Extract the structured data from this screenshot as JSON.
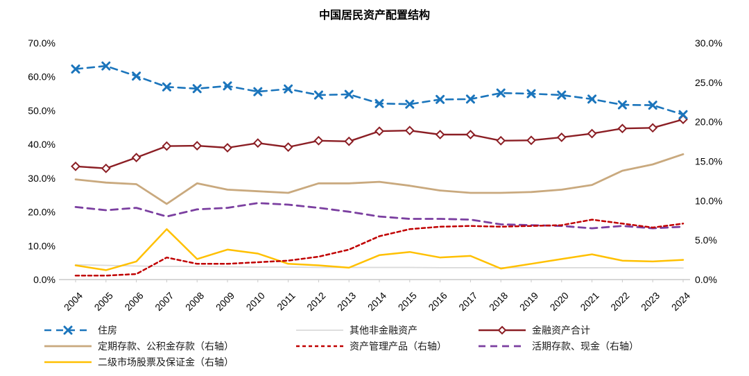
{
  "title": "中国居民资产配置结构",
  "chart_data": {
    "type": "line",
    "title": "中国居民资产配置结构",
    "grid": false,
    "legend_position": "bottom",
    "x_labels": [
      "2004",
      "2005",
      "2006",
      "2007",
      "2008",
      "2009",
      "2010",
      "2011",
      "2012",
      "2013",
      "2014",
      "2015",
      "2016",
      "2017",
      "2018",
      "2019",
      "2020",
      "2021",
      "2022",
      "2023",
      "2024"
    ],
    "left_axis": {
      "min": 0,
      "max": 70,
      "ticks_top_down": [
        "70.0%",
        "60.0%",
        "50.0%",
        "40.0%",
        "30.0%",
        "20.0%",
        "10.0%",
        "0.0%"
      ]
    },
    "right_axis": {
      "min": 0,
      "max": 30,
      "ticks_top_down": [
        "30.0%",
        "25.0%",
        "20.0%",
        "15.0%",
        "10.0%",
        "5.0%",
        "0.0%"
      ]
    },
    "series": [
      {
        "name": "住房",
        "axis": "left",
        "color": "#1B75BC",
        "dash": "10 7",
        "marker": "x",
        "width": 2.6,
        "values": [
          62.3,
          63.2,
          60.2,
          57.0,
          56.5,
          57.3,
          55.6,
          56.4,
          54.6,
          54.8,
          52.1,
          51.9,
          53.3,
          53.4,
          55.2,
          55.0,
          54.6,
          53.4,
          51.7,
          51.6,
          48.8
        ]
      },
      {
        "name": "其他非金融资产",
        "axis": "left",
        "color": "#D9D9D9",
        "dash": null,
        "marker": null,
        "width": 1.8,
        "values": [
          4.4,
          4.2,
          4.0,
          3.9,
          3.9,
          3.8,
          3.7,
          3.7,
          3.6,
          3.6,
          3.6,
          3.6,
          3.5,
          3.5,
          3.5,
          3.5,
          3.5,
          3.5,
          3.5,
          3.5,
          3.4
        ]
      },
      {
        "name": "金融资产合计",
        "axis": "left",
        "color": "#8B1E24",
        "dash": null,
        "marker": "diamond",
        "width": 2.4,
        "values": [
          33.5,
          32.9,
          36.1,
          39.5,
          39.6,
          39.0,
          40.4,
          39.2,
          41.1,
          40.9,
          43.9,
          44.1,
          42.9,
          42.9,
          41.1,
          41.2,
          42.1,
          43.2,
          44.7,
          44.9,
          47.4
        ]
      },
      {
        "name": "定期存款、公积金存款（右轴）",
        "axis": "right",
        "color": "#C9A97E",
        "dash": null,
        "marker": null,
        "width": 2.8,
        "values": [
          12.7,
          12.3,
          12.1,
          9.6,
          12.2,
          11.4,
          11.2,
          11.0,
          12.2,
          12.2,
          12.4,
          11.9,
          11.3,
          11.0,
          11.0,
          11.1,
          11.4,
          12.0,
          13.8,
          14.6,
          15.9
        ]
      },
      {
        "name": "资产管理产品（右轴）",
        "axis": "right",
        "color": "#C00000",
        "dash": "5 4",
        "marker": null,
        "width": 2.5,
        "values": [
          0.5,
          0.5,
          0.7,
          2.8,
          2.0,
          2.0,
          2.2,
          2.4,
          2.9,
          3.8,
          5.5,
          6.4,
          6.7,
          6.8,
          6.7,
          6.8,
          6.9,
          7.6,
          7.1,
          6.6,
          7.1
        ]
      },
      {
        "name": "活期存款、现金（右轴）",
        "axis": "right",
        "color": "#7B3FA0",
        "dash": "10 7",
        "marker": null,
        "width": 2.8,
        "values": [
          9.2,
          8.8,
          9.1,
          8.0,
          8.9,
          9.1,
          9.7,
          9.5,
          9.1,
          8.6,
          8.0,
          7.7,
          7.7,
          7.6,
          7.0,
          6.9,
          6.8,
          6.5,
          6.8,
          6.5,
          6.7
        ]
      },
      {
        "name": "二级市场股票及保证金（右轴）",
        "axis": "right",
        "color": "#FFC000",
        "dash": null,
        "marker": null,
        "width": 2.5,
        "values": [
          1.8,
          1.2,
          2.3,
          6.4,
          2.6,
          3.8,
          3.3,
          2.0,
          1.8,
          1.5,
          3.1,
          3.5,
          2.8,
          3.0,
          1.4,
          2.0,
          2.6,
          3.2,
          2.4,
          2.3,
          2.5
        ]
      }
    ],
    "legend_columns": [
      [
        0,
        3,
        6
      ],
      [
        1,
        4
      ],
      [
        2,
        5
      ]
    ],
    "axis_line_color": "#C9C9C9"
  }
}
